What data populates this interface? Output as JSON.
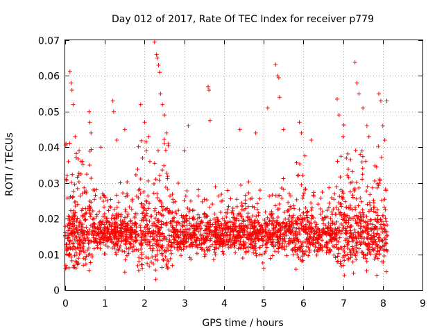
{
  "chart_data": {
    "type": "scatter",
    "title": "Day 012 of 2017, Rate Of TEC Index for receiver p779",
    "xlabel": "GPS time / hours",
    "ylabel": "ROTI / TECUs",
    "xlim": [
      0,
      9
    ],
    "ylim": [
      0,
      0.07
    ],
    "xticks": [
      "0",
      "1",
      "2",
      "3",
      "4",
      "5",
      "6",
      "7",
      "8",
      "9"
    ],
    "yticks": [
      "0",
      "0.01",
      "0.02",
      "0.03",
      "0.04",
      "0.05",
      "0.06",
      "0.07"
    ],
    "grid": true,
    "marker": "+",
    "color": "#ff0000",
    "series": [
      {
        "name": "ROTI",
        "description": "dense scatter of ROTI samples from 0 to ~8.1 h, bulk between 0.005 and 0.03 TECU",
        "points": [
          [
            0.02,
            0.041
          ],
          [
            0.05,
            0.032
          ],
          [
            0.08,
            0.036
          ],
          [
            0.12,
            0.0612
          ],
          [
            0.15,
            0.058
          ],
          [
            0.17,
            0.056
          ],
          [
            0.2,
            0.052
          ],
          [
            0.25,
            0.043
          ],
          [
            0.35,
            0.039
          ],
          [
            0.4,
            0.036
          ],
          [
            0.6,
            0.05
          ],
          [
            0.62,
            0.047
          ],
          [
            0.65,
            0.044
          ],
          [
            0.9,
            0.04
          ],
          [
            1.2,
            0.053
          ],
          [
            1.22,
            0.05
          ],
          [
            1.3,
            0.042
          ],
          [
            1.5,
            0.045
          ],
          [
            1.9,
            0.052
          ],
          [
            2.0,
            0.047
          ],
          [
            2.1,
            0.043
          ],
          [
            2.25,
            0.0695
          ],
          [
            2.3,
            0.066
          ],
          [
            2.32,
            0.065
          ],
          [
            2.35,
            0.063
          ],
          [
            2.38,
            0.061
          ],
          [
            2.4,
            0.055
          ],
          [
            2.45,
            0.052
          ],
          [
            2.5,
            0.049
          ],
          [
            2.55,
            0.044
          ],
          [
            2.6,
            0.041
          ],
          [
            3.0,
            0.039
          ],
          [
            3.1,
            0.046
          ],
          [
            3.6,
            0.057
          ],
          [
            3.62,
            0.056
          ],
          [
            3.65,
            0.0475
          ],
          [
            4.4,
            0.045
          ],
          [
            4.8,
            0.044
          ],
          [
            5.1,
            0.051
          ],
          [
            5.3,
            0.0632
          ],
          [
            5.35,
            0.06
          ],
          [
            5.38,
            0.0595
          ],
          [
            5.4,
            0.054
          ],
          [
            5.5,
            0.045
          ],
          [
            5.9,
            0.047
          ],
          [
            5.95,
            0.044
          ],
          [
            6.2,
            0.042
          ],
          [
            6.85,
            0.0535
          ],
          [
            6.9,
            0.049
          ],
          [
            7.0,
            0.043
          ],
          [
            7.3,
            0.0638
          ],
          [
            7.35,
            0.058
          ],
          [
            7.4,
            0.055
          ],
          [
            7.5,
            0.051
          ],
          [
            7.6,
            0.046
          ],
          [
            7.65,
            0.043
          ],
          [
            7.9,
            0.055
          ],
          [
            7.95,
            0.053
          ],
          [
            8.0,
            0.046
          ],
          [
            8.05,
            0.042
          ],
          [
            8.1,
            0.053
          ],
          [
            2.28,
            0.003
          ],
          [
            1.5,
            0.005
          ],
          [
            0.6,
            0.0055
          ],
          [
            7.85,
            0.004
          ],
          [
            5.0,
            0.006
          ]
        ]
      }
    ]
  }
}
